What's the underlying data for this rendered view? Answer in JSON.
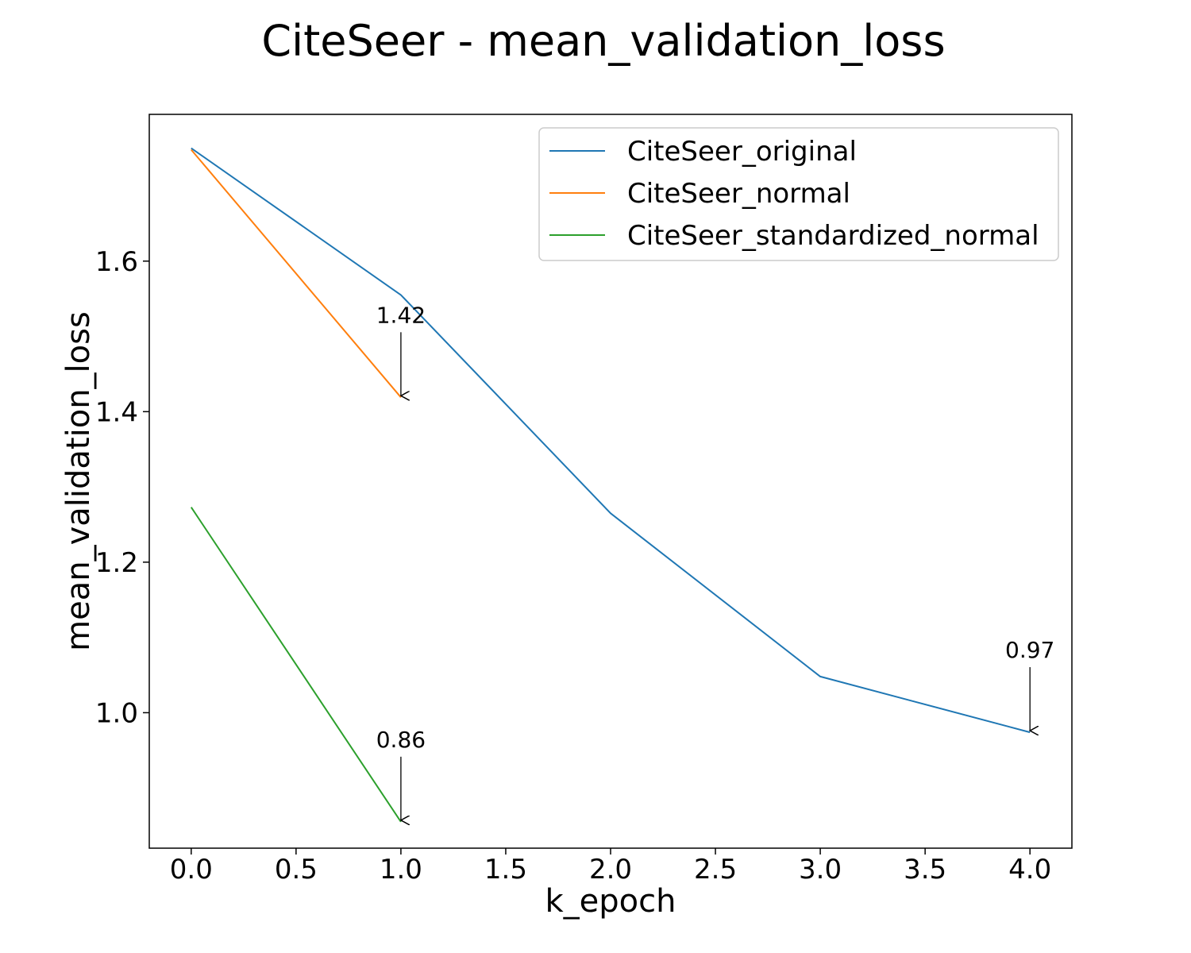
{
  "chart_data": {
    "type": "line",
    "title": "CiteSeer - mean_validation_loss",
    "xlabel": "k_epoch",
    "ylabel": "mean_validation_loss",
    "xlim": [
      -0.2,
      4.2
    ],
    "ylim": [
      0.82,
      1.795
    ],
    "xticks": [
      0.0,
      0.5,
      1.0,
      1.5,
      2.0,
      2.5,
      3.0,
      3.5,
      4.0
    ],
    "xtick_labels": [
      "0.0",
      "0.5",
      "1.0",
      "1.5",
      "2.0",
      "2.5",
      "3.0",
      "3.5",
      "4.0"
    ],
    "yticks": [
      1.0,
      1.2,
      1.4,
      1.6
    ],
    "ytick_labels": [
      "1.0",
      "1.2",
      "1.4",
      "1.6"
    ],
    "grid": false,
    "legend_position": "top-right",
    "series": [
      {
        "name": "CiteSeer_original",
        "color": "#1f77b4",
        "x": [
          0,
          1,
          2,
          3,
          4
        ],
        "y": [
          1.75,
          1.555,
          1.265,
          1.048,
          0.974
        ]
      },
      {
        "name": "CiteSeer_normal",
        "color": "#ff7f0e",
        "x": [
          0,
          1
        ],
        "y": [
          1.748,
          1.419
        ]
      },
      {
        "name": "CiteSeer_standardized_normal",
        "color": "#2ca02c",
        "x": [
          0,
          1
        ],
        "y": [
          1.273,
          0.855
        ]
      }
    ],
    "annotations": [
      {
        "text": "1.42",
        "x": 1,
        "y": 1.419
      },
      {
        "text": "0.86",
        "x": 1,
        "y": 0.855
      },
      {
        "text": "0.97",
        "x": 4,
        "y": 0.974
      }
    ]
  }
}
